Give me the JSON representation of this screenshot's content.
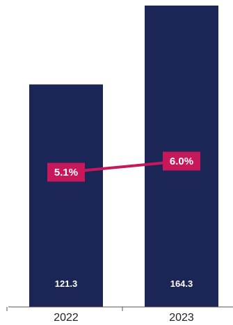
{
  "chart_data": {
    "type": "bar",
    "categories": [
      "2022",
      "2023"
    ],
    "series": [
      {
        "values": [
          121.3,
          164.3
        ],
        "labels": [
          "121.3",
          "164.3"
        ]
      },
      {
        "type": "line",
        "values": [
          5.1,
          6.0
        ],
        "labels": [
          "5.1%",
          "6.0%"
        ]
      }
    ],
    "ylim": [
      0,
      164.3
    ],
    "grid": false,
    "legend": "none"
  },
  "colors": {
    "bar": "#1b2657",
    "line": "#c8185c",
    "label_bg": "#c8185c",
    "axis": "#555555"
  }
}
